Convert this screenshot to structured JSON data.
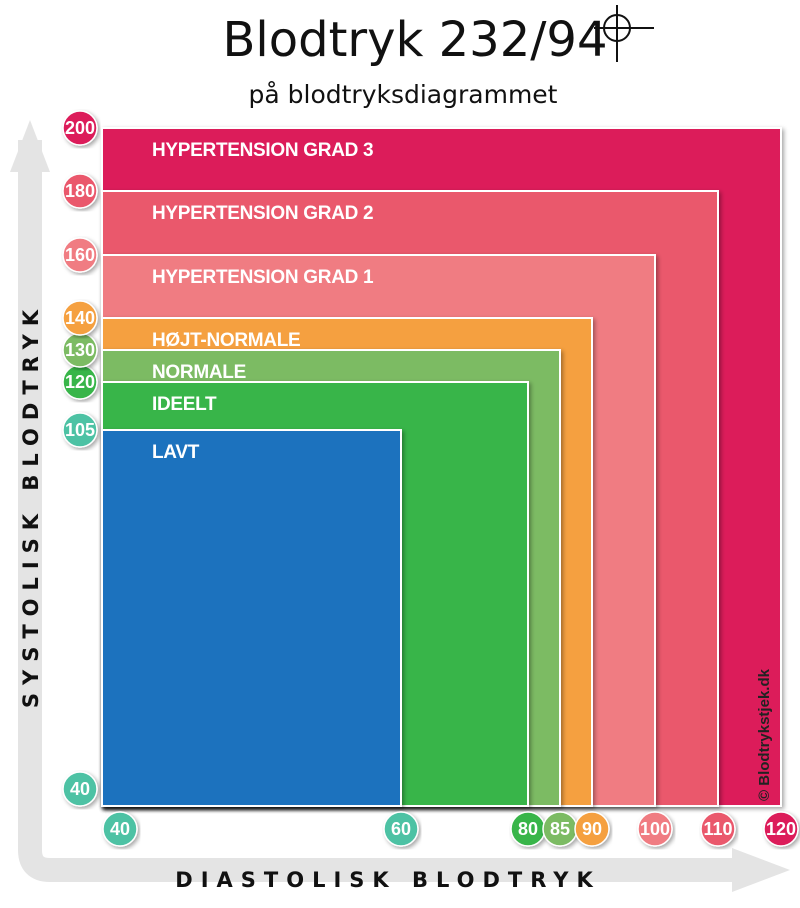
{
  "header": {
    "title": "Blodtryk 232/94",
    "subtitle": "på blodtryksdiagrammet"
  },
  "watermark": "© Blodtrykstjek.dk",
  "chart_data": {
    "type": "area",
    "title": "Blodtryk 232/94",
    "subtitle": "på blodtryksdiagrammet",
    "xlabel": "DIASTOLISK BLODTRYK",
    "ylabel": "SYSTOLISK BLODTRYK",
    "x_ticks": [
      40,
      60,
      80,
      85,
      90,
      100,
      110,
      120
    ],
    "y_ticks": [
      40,
      105,
      120,
      130,
      140,
      160,
      180,
      200
    ],
    "xlim": [
      40,
      120
    ],
    "ylim": [
      40,
      200
    ],
    "zones": [
      {
        "name": "HYPERTENSION GRAD 3",
        "max_diastolic": 120,
        "max_systolic": 200,
        "color": "#dc1a5a"
      },
      {
        "name": "HYPERTENSION GRAD 2",
        "max_diastolic": 110,
        "max_systolic": 180,
        "color": "#ea586c"
      },
      {
        "name": "HYPERTENSION GRAD 1",
        "max_diastolic": 100,
        "max_systolic": 160,
        "color": "#f07b82"
      },
      {
        "name": "HØJT-NORMALE",
        "max_diastolic": 90,
        "max_systolic": 140,
        "color": "#f5a040"
      },
      {
        "name": "NORMALE",
        "max_diastolic": 85,
        "max_systolic": 130,
        "color": "#7cbb64"
      },
      {
        "name": "IDEELT",
        "max_diastolic": 80,
        "max_systolic": 120,
        "color": "#38b54a"
      },
      {
        "name": "LAVT",
        "max_diastolic": 60,
        "max_systolic": 105,
        "color": "#1c72be"
      }
    ],
    "x_tick_colors": [
      "#4dc2a4",
      "#4dc2a4",
      "#38b54a",
      "#7cbb64",
      "#f5a040",
      "#f07b82",
      "#ea586c",
      "#dc1a5a"
    ],
    "y_tick_colors": [
      "#4dc2a4",
      "#4dc2a4",
      "#38b54a",
      "#7cbb64",
      "#f5a040",
      "#f07b82",
      "#ea586c",
      "#dc1a5a"
    ],
    "reading": {
      "systolic": 232,
      "diastolic": 94
    }
  }
}
